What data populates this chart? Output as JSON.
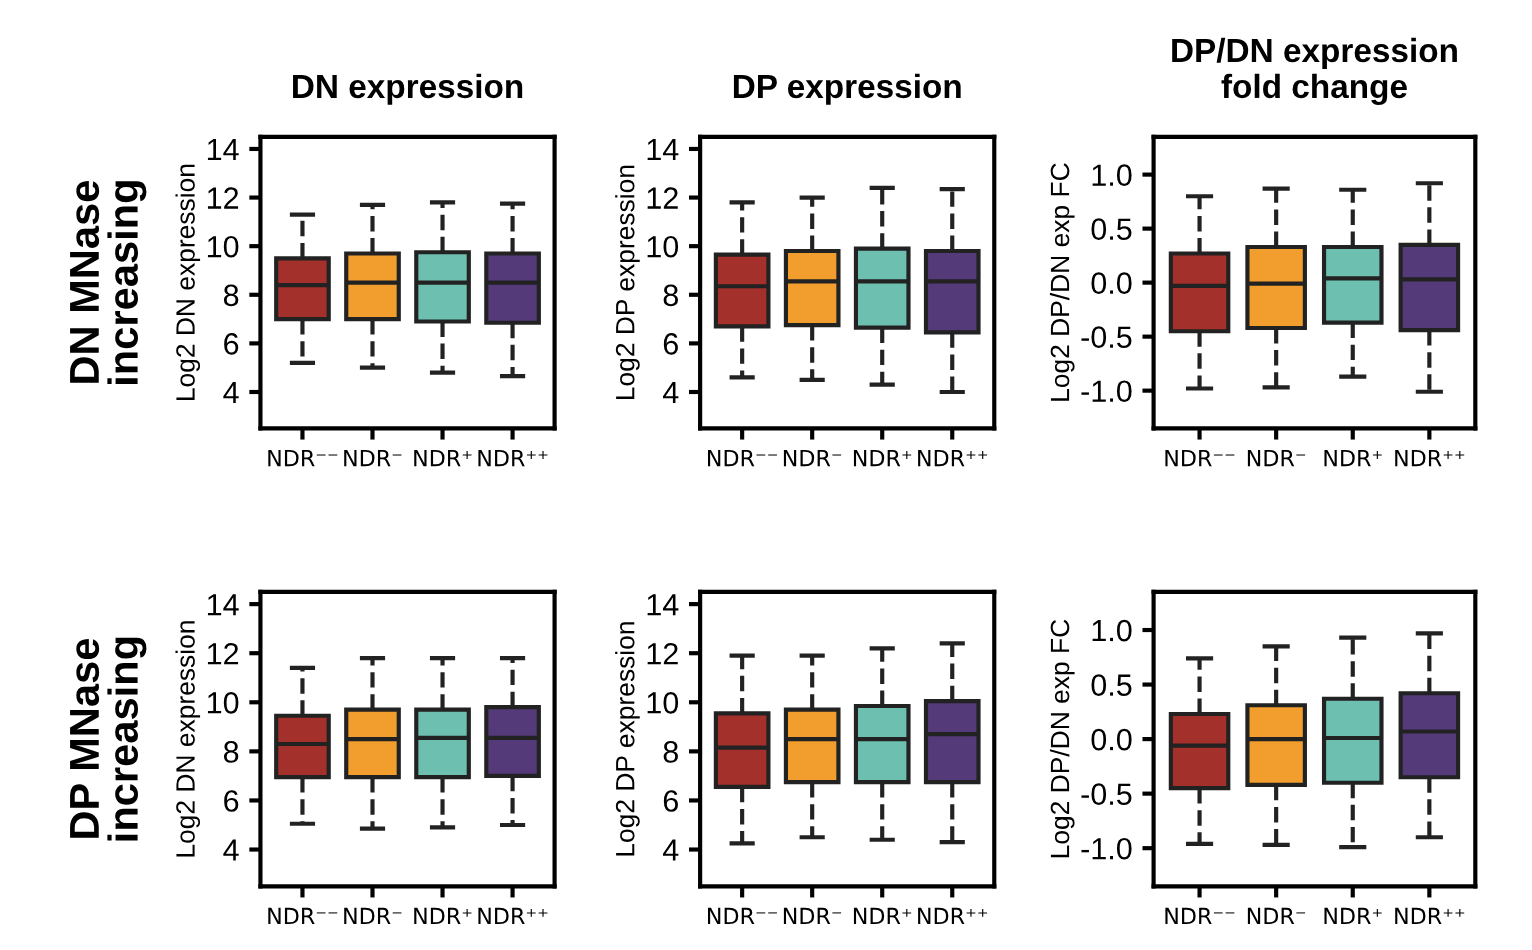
{
  "chart_data": [
    {
      "type": "box",
      "title": "DN expression",
      "ylabel": "Log2 DN expression",
      "annotations": [
        "DN MNase\nincreasing"
      ],
      "categories": [
        "NDR⁻⁻",
        "NDR⁻",
        "NDR⁺",
        "NDR⁺⁺"
      ],
      "colors": [
        "#a3302a",
        "#f29e2e",
        "#6dc0b0",
        "#553a7a"
      ],
      "line_style": "dashed",
      "ylim": [
        2.5,
        14.5
      ],
      "yticks": [
        4,
        6,
        8,
        10,
        12,
        14
      ],
      "grid": false,
      "legend": false,
      "boxes": [
        {
          "low": 5.2,
          "q1": 7.0,
          "median": 8.4,
          "q3": 9.5,
          "high": 11.3
        },
        {
          "low": 5.0,
          "q1": 7.0,
          "median": 8.5,
          "q3": 9.7,
          "high": 11.7
        },
        {
          "low": 4.8,
          "q1": 6.9,
          "median": 8.5,
          "q3": 9.75,
          "high": 11.8
        },
        {
          "low": 4.65,
          "q1": 6.85,
          "median": 8.5,
          "q3": 9.7,
          "high": 11.75
        }
      ]
    },
    {
      "type": "box",
      "title": "DP expression",
      "ylabel": "Log2 DP expression",
      "categories": [
        "NDR⁻⁻",
        "NDR⁻",
        "NDR⁺",
        "NDR⁺⁺"
      ],
      "colors": [
        "#a3302a",
        "#f29e2e",
        "#6dc0b0",
        "#553a7a"
      ],
      "line_style": "dashed",
      "ylim": [
        2.5,
        14.5
      ],
      "yticks": [
        4,
        6,
        8,
        10,
        12,
        14
      ],
      "grid": false,
      "legend": false,
      "boxes": [
        {
          "low": 4.6,
          "q1": 6.7,
          "median": 8.35,
          "q3": 9.65,
          "high": 11.8
        },
        {
          "low": 4.5,
          "q1": 6.75,
          "median": 8.55,
          "q3": 9.8,
          "high": 12.0
        },
        {
          "low": 4.3,
          "q1": 6.65,
          "median": 8.55,
          "q3": 9.9,
          "high": 12.4
        },
        {
          "low": 4.0,
          "q1": 6.45,
          "median": 8.55,
          "q3": 9.8,
          "high": 12.35
        }
      ]
    },
    {
      "type": "box",
      "title": "DP/DN expression\nfold change",
      "ylabel": "Log2 DP/DN exp FC",
      "categories": [
        "NDR⁻⁻",
        "NDR⁻",
        "NDR⁺",
        "NDR⁺⁺"
      ],
      "colors": [
        "#a3302a",
        "#f29e2e",
        "#6dc0b0",
        "#553a7a"
      ],
      "line_style": "dashed",
      "ylim": [
        -1.35,
        1.35
      ],
      "yticks": [
        {
          "value": -1,
          "label": "-1.0"
        },
        -0.5,
        {
          "value": 0,
          "label": "0.0"
        },
        0.5,
        {
          "value": 1,
          "label": "1.0"
        }
      ],
      "grid": false,
      "legend": false,
      "boxes": [
        {
          "low": -0.98,
          "q1": -0.45,
          "median": -0.03,
          "q3": 0.27,
          "high": 0.8
        },
        {
          "low": -0.97,
          "q1": -0.42,
          "median": -0.01,
          "q3": 0.33,
          "high": 0.87
        },
        {
          "low": -0.87,
          "q1": -0.37,
          "median": 0.04,
          "q3": 0.33,
          "high": 0.86
        },
        {
          "low": -1.01,
          "q1": -0.44,
          "median": 0.03,
          "q3": 0.35,
          "high": 0.92
        }
      ]
    },
    {
      "type": "box",
      "ylabel": "Log2 DN expression",
      "annotations": [
        "DP MNase\nincreasing"
      ],
      "categories": [
        "NDR⁻⁻",
        "NDR⁻",
        "NDR⁺",
        "NDR⁺⁺"
      ],
      "colors": [
        "#a3302a",
        "#f29e2e",
        "#6dc0b0",
        "#553a7a"
      ],
      "line_style": "dashed",
      "ylim": [
        2.5,
        14.5
      ],
      "yticks": [
        4,
        6,
        8,
        10,
        12,
        14
      ],
      "grid": false,
      "legend": false,
      "boxes": [
        {
          "low": 5.05,
          "q1": 6.95,
          "median": 8.3,
          "q3": 9.45,
          "high": 11.4
        },
        {
          "low": 4.85,
          "q1": 6.95,
          "median": 8.5,
          "q3": 9.7,
          "high": 11.8
        },
        {
          "low": 4.9,
          "q1": 6.95,
          "median": 8.55,
          "q3": 9.7,
          "high": 11.8
        },
        {
          "low": 5.0,
          "q1": 7.0,
          "median": 8.55,
          "q3": 9.8,
          "high": 11.8
        }
      ]
    },
    {
      "type": "box",
      "ylabel": "Log2 DP expression",
      "categories": [
        "NDR⁻⁻",
        "NDR⁻",
        "NDR⁺",
        "NDR⁺⁺"
      ],
      "colors": [
        "#a3302a",
        "#f29e2e",
        "#6dc0b0",
        "#553a7a"
      ],
      "line_style": "dashed",
      "ylim": [
        2.5,
        14.5
      ],
      "yticks": [
        4,
        6,
        8,
        10,
        12,
        14
      ],
      "grid": false,
      "legend": false,
      "boxes": [
        {
          "low": 4.25,
          "q1": 6.55,
          "median": 8.15,
          "q3": 9.55,
          "high": 11.9
        },
        {
          "low": 4.5,
          "q1": 6.75,
          "median": 8.5,
          "q3": 9.7,
          "high": 11.9
        },
        {
          "low": 4.4,
          "q1": 6.75,
          "median": 8.5,
          "q3": 9.85,
          "high": 12.2
        },
        {
          "low": 4.3,
          "q1": 6.75,
          "median": 8.7,
          "q3": 10.05,
          "high": 12.4
        }
      ]
    },
    {
      "type": "box",
      "ylabel": "Log2 DP/DN exp FC",
      "categories": [
        "NDR⁻⁻",
        "NDR⁻",
        "NDR⁺",
        "NDR⁺⁺"
      ],
      "colors": [
        "#a3302a",
        "#f29e2e",
        "#6dc0b0",
        "#553a7a"
      ],
      "line_style": "dashed",
      "ylim": [
        -1.35,
        1.35
      ],
      "yticks": [
        {
          "value": -1,
          "label": "-1.0"
        },
        -0.5,
        {
          "value": 0,
          "label": "0.0"
        },
        0.5,
        {
          "value": 1,
          "label": "1.0"
        }
      ],
      "grid": false,
      "legend": false,
      "boxes": [
        {
          "low": -0.96,
          "q1": -0.45,
          "median": -0.06,
          "q3": 0.23,
          "high": 0.74
        },
        {
          "low": -0.97,
          "q1": -0.42,
          "median": 0.0,
          "q3": 0.31,
          "high": 0.85
        },
        {
          "low": -0.99,
          "q1": -0.4,
          "median": 0.01,
          "q3": 0.37,
          "high": 0.93
        },
        {
          "low": -0.9,
          "q1": -0.35,
          "median": 0.07,
          "q3": 0.42,
          "high": 0.97
        }
      ]
    }
  ]
}
